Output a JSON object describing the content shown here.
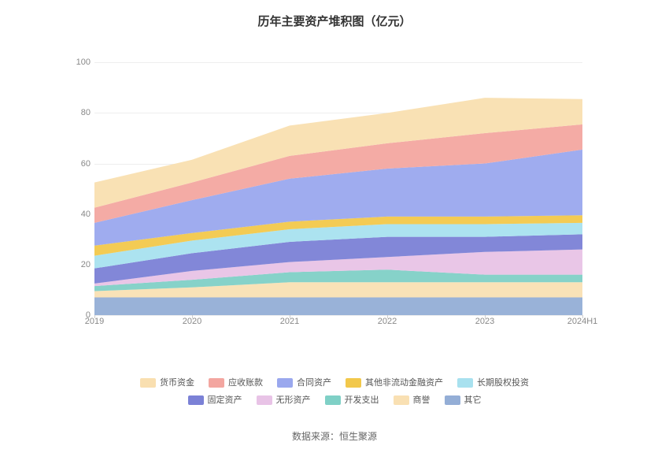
{
  "chart": {
    "type": "stacked-area",
    "title": "历年主要资产堆积图（亿元）",
    "title_fontsize": 15,
    "title_color": "#333333",
    "background_color": "#ffffff",
    "grid_color": "#eeeeee",
    "axis_label_color": "#888888",
    "axis_label_fontsize": 11,
    "x_categories": [
      "2019",
      "2020",
      "2021",
      "2022",
      "2023",
      "2024H1"
    ],
    "ylim": [
      0,
      106
    ],
    "yticks": [
      0,
      20,
      40,
      60,
      80,
      100
    ],
    "series": [
      {
        "name": "其它",
        "color": "#94aed6",
        "values": [
          7,
          7,
          7,
          7,
          7,
          7
        ]
      },
      {
        "name": "商誉",
        "color": "#f9e0b3",
        "values": [
          2.5,
          4,
          6,
          6,
          6,
          6
        ]
      },
      {
        "name": "开发支出",
        "color": "#7fd0c6",
        "values": [
          2,
          3,
          4,
          5,
          3,
          3
        ]
      },
      {
        "name": "无形资产",
        "color": "#e8c3e6",
        "values": [
          1,
          3.5,
          4,
          5,
          9,
          10
        ]
      },
      {
        "name": "固定资产",
        "color": "#7b81d6",
        "values": [
          6,
          7,
          8,
          8,
          6,
          6
        ]
      },
      {
        "name": "长期股权投资",
        "color": "#a8e1ef",
        "values": [
          5,
          5,
          5,
          5,
          5,
          4.5
        ]
      },
      {
        "name": "其他非流动金融资产",
        "color": "#f2c84b",
        "values": [
          4,
          3,
          3,
          3,
          3,
          3
        ]
      },
      {
        "name": "合同资产",
        "color": "#9aa8ee",
        "values": [
          9,
          13,
          17,
          19,
          21,
          26
        ]
      },
      {
        "name": "应收账款",
        "color": "#f3a6a0",
        "values": [
          6,
          7,
          9,
          10,
          12,
          10
        ]
      },
      {
        "name": "货币资金",
        "color": "#f9dfb0",
        "values": [
          10,
          9,
          12,
          12,
          14,
          10
        ]
      }
    ],
    "legend_rows": [
      [
        "货币资金",
        "应收账款",
        "合同资产",
        "其他非流动金融资产",
        "长期股权投资"
      ],
      [
        "固定资产",
        "无形资产",
        "开发支出",
        "商誉",
        "其它"
      ]
    ],
    "source_text": "数据来源：恒生聚源"
  }
}
